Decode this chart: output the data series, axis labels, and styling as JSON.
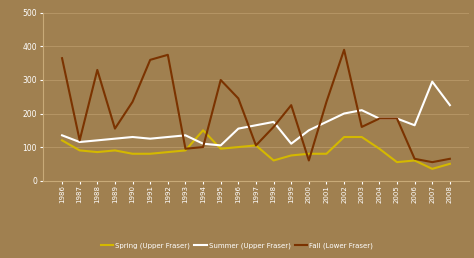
{
  "years": [
    1986,
    1987,
    1988,
    1989,
    1990,
    1991,
    1992,
    1993,
    1994,
    1995,
    1996,
    1997,
    1998,
    1999,
    2000,
    2001,
    2002,
    2003,
    2004,
    2005,
    2006,
    2007,
    2008
  ],
  "spring": [
    120,
    90,
    85,
    90,
    80,
    80,
    85,
    90,
    150,
    95,
    100,
    105,
    60,
    75,
    80,
    80,
    130,
    130,
    95,
    55,
    60,
    35,
    50
  ],
  "summer": [
    135,
    115,
    120,
    125,
    130,
    125,
    130,
    135,
    110,
    105,
    155,
    165,
    175,
    110,
    150,
    175,
    200,
    210,
    185,
    185,
    165,
    295,
    225
  ],
  "fall": [
    365,
    120,
    330,
    155,
    235,
    360,
    375,
    95,
    100,
    300,
    245,
    105,
    160,
    225,
    60,
    235,
    390,
    160,
    185,
    185,
    65,
    55,
    65
  ],
  "spring_color": "#d4b800",
  "summer_color": "#ffffff",
  "fall_color": "#7b3300",
  "background_color": "#a08050",
  "grid_color": "#b89868",
  "ylim": [
    0,
    500
  ],
  "yticks": [
    0,
    100,
    200,
    300,
    400,
    500
  ],
  "legend_labels": [
    "Spring (Upper Fraser)",
    "Summer (Upper Fraser)",
    "Fall (Lower Fraser)"
  ]
}
